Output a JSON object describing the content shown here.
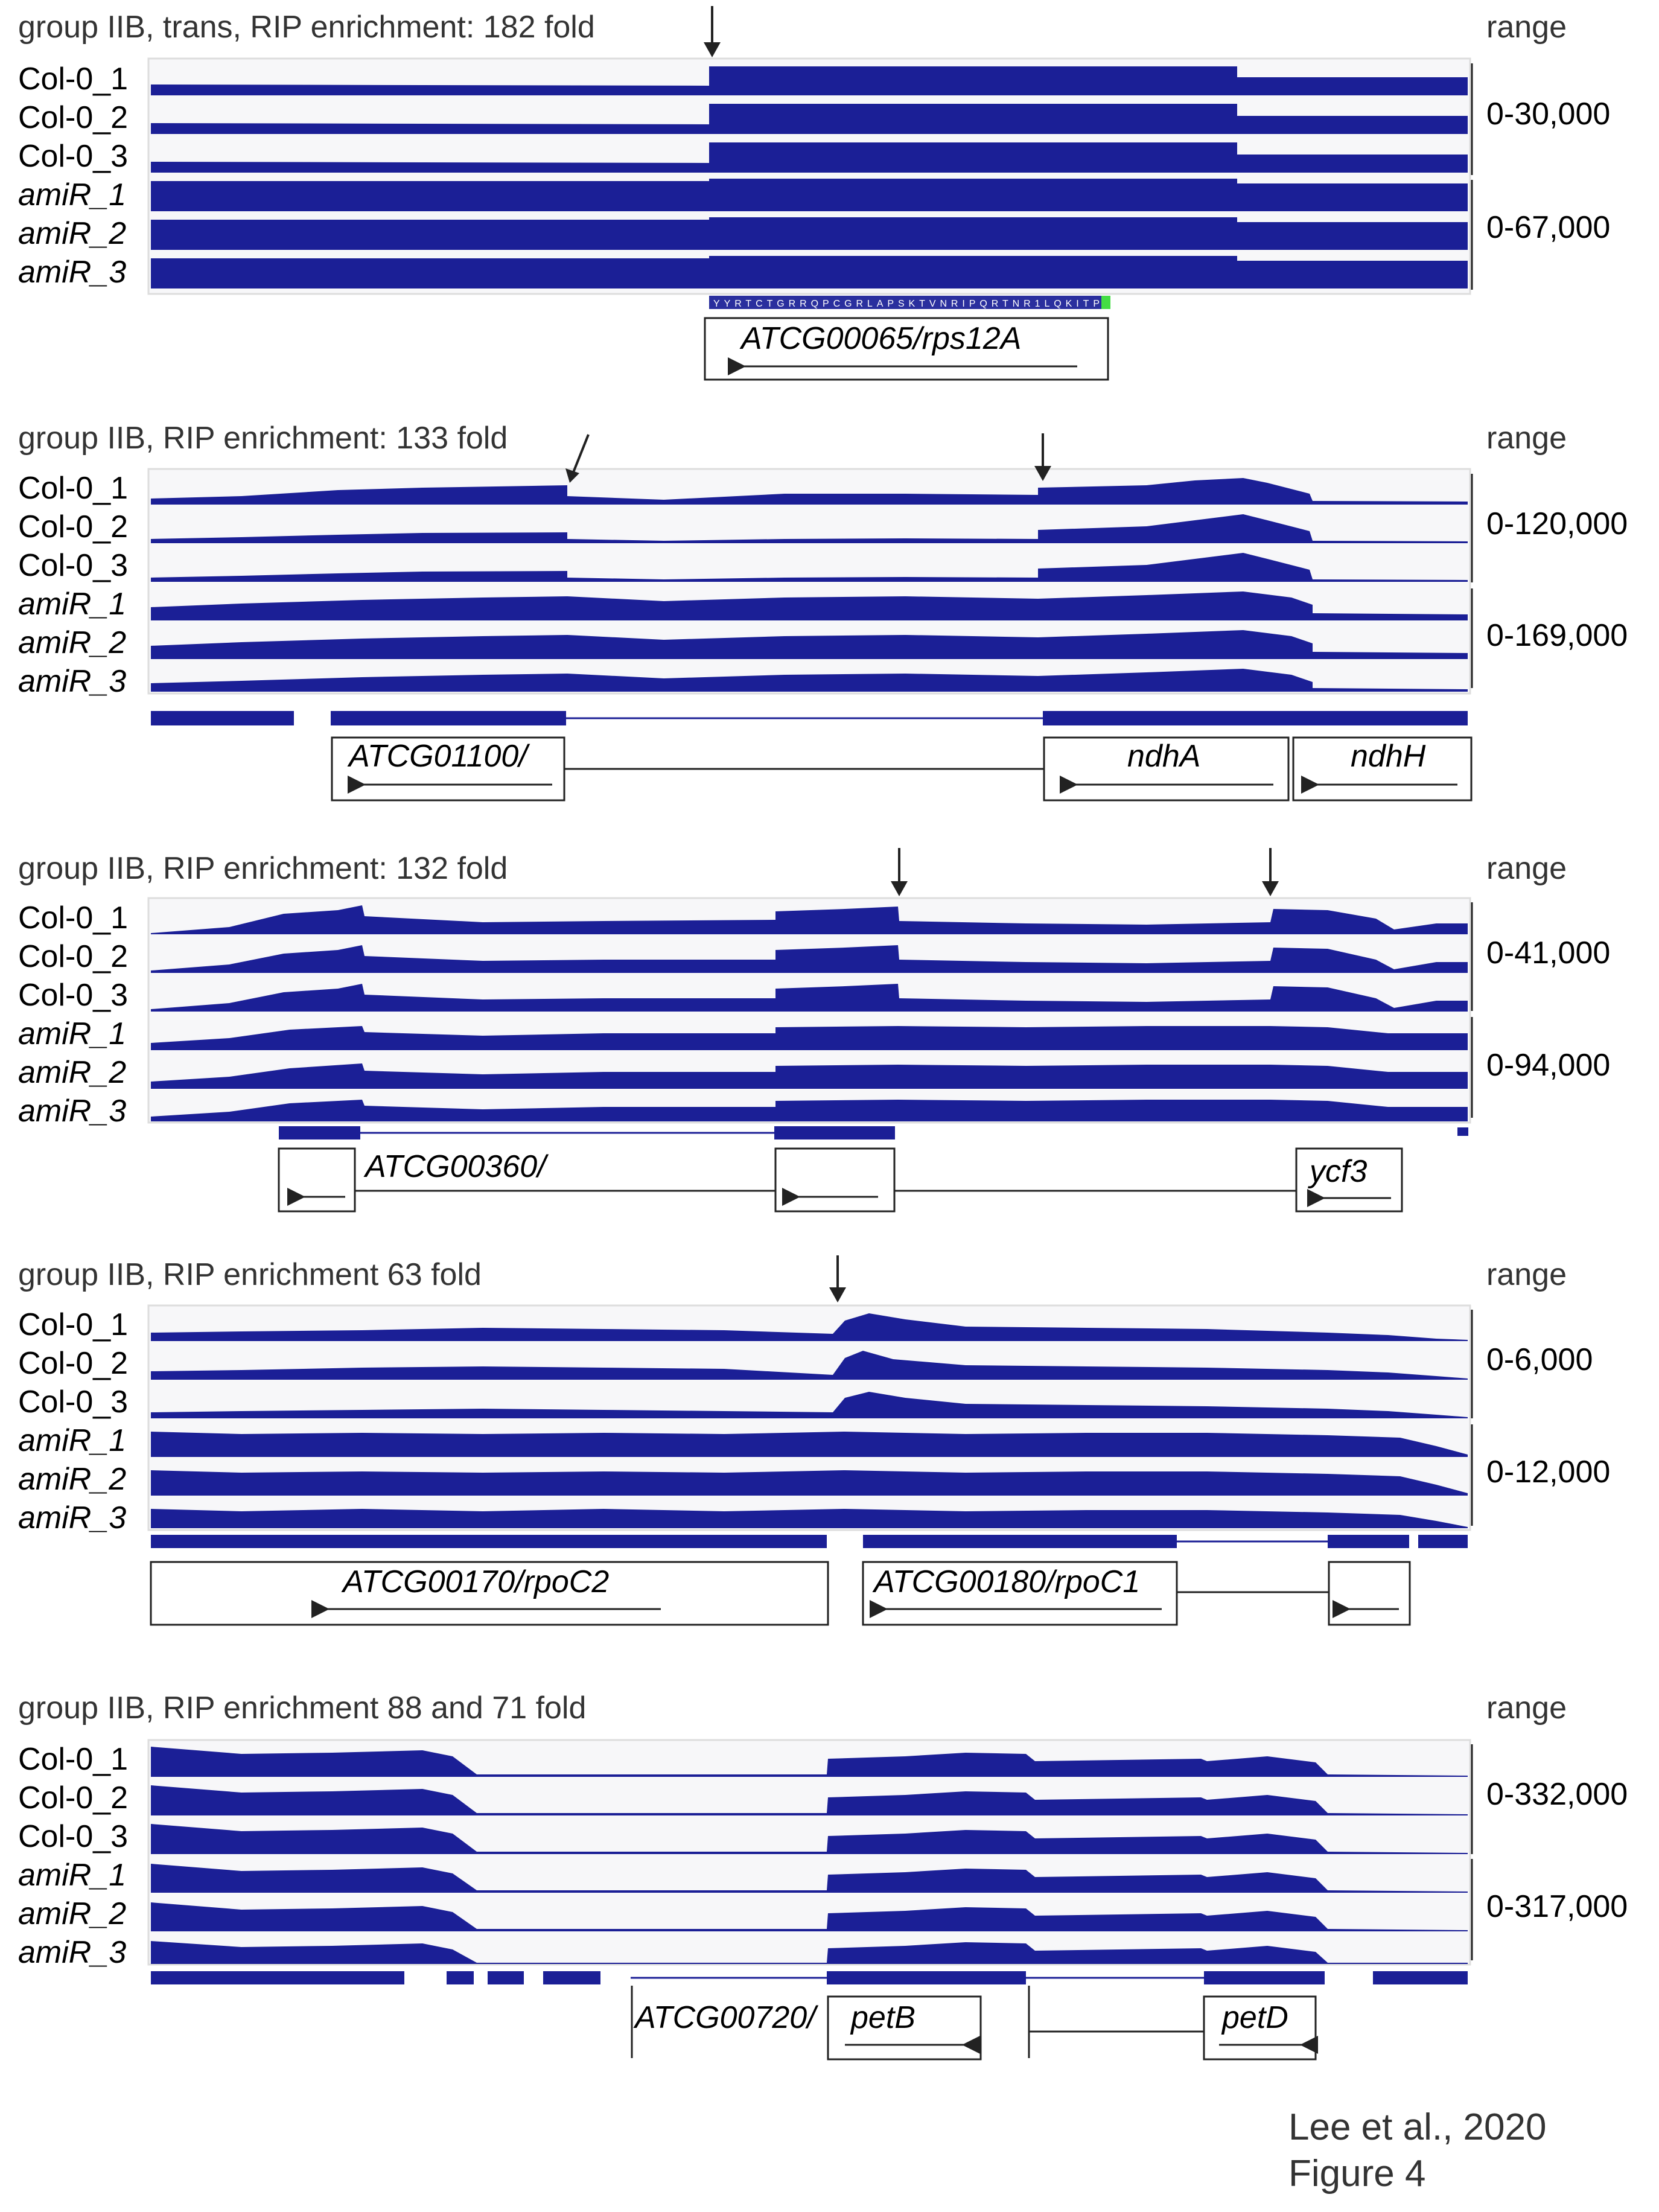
{
  "figure": {
    "footer_line1": "Lee et al., 2020",
    "footer_line2": "Figure 4",
    "range_header": "range",
    "track_color": "#1b1f96",
    "panels": [
      {
        "title": "group IIB, trans, RIP enrichment: 182 fold",
        "tracks": [
          "Col-0_1",
          "Col-0_2",
          "Col-0_3",
          "amiR_1",
          "amiR_2",
          "amiR_3"
        ],
        "range_col": "0-30,000",
        "range_amir": "0-67,000",
        "genes": [
          {
            "label": "ATCG00065/rps12A",
            "direction": "left",
            "italic": true
          }
        ],
        "protein_sequence": "YYRTCTGRRQPCGRLAPSKTVNRIPQRTNR1LQKITP"
      },
      {
        "title": "group IIB, RIP enrichment: 133 fold",
        "tracks": [
          "Col-0_1",
          "Col-0_2",
          "Col-0_3",
          "amiR_1",
          "amiR_2",
          "amiR_3"
        ],
        "range_col": "0-120,000",
        "range_amir": "0-169,000",
        "genes": [
          {
            "label": "ATCG01100/",
            "direction": "left",
            "italic": true
          },
          {
            "label": "ndhA",
            "direction": "left",
            "italic": true
          },
          {
            "label": "ndhH",
            "direction": "left",
            "italic": true
          }
        ]
      },
      {
        "title": "group IIB, RIP enrichment: 132 fold",
        "tracks": [
          "Col-0_1",
          "Col-0_2",
          "Col-0_3",
          "amiR_1",
          "amiR_2",
          "amiR_3"
        ],
        "range_col": "0-41,000",
        "range_amir": "0-94,000",
        "genes": [
          {
            "label": "ATCG00360/",
            "direction": "left",
            "italic": true
          },
          {
            "label": "ycf3",
            "direction": "left",
            "italic": true
          }
        ]
      },
      {
        "title": "group IIB, RIP enrichment 63 fold",
        "tracks": [
          "Col-0_1",
          "Col-0_2",
          "Col-0_3",
          "amiR_1",
          "amiR_2",
          "amiR_3"
        ],
        "range_col": "0-6,000",
        "range_amir": "0-12,000",
        "genes": [
          {
            "label": "ATCG00170/rpoC2",
            "direction": "left",
            "italic": true
          },
          {
            "label": "ATCG00180/rpoC1",
            "direction": "left",
            "italic": true
          }
        ]
      },
      {
        "title": "group IIB, RIP enrichment 88 and 71 fold",
        "tracks": [
          "Col-0_1",
          "Col-0_2",
          "Col-0_3",
          "amiR_1",
          "amiR_2",
          "amiR_3"
        ],
        "range_col": "0-332,000",
        "range_amir": "0-317,000",
        "genes": [
          {
            "label": "ATCG00720/",
            "direction": "right",
            "italic": true
          },
          {
            "label": "petB",
            "direction": "right",
            "italic": true
          },
          {
            "label": "petD",
            "direction": "right",
            "italic": true
          }
        ]
      }
    ]
  }
}
